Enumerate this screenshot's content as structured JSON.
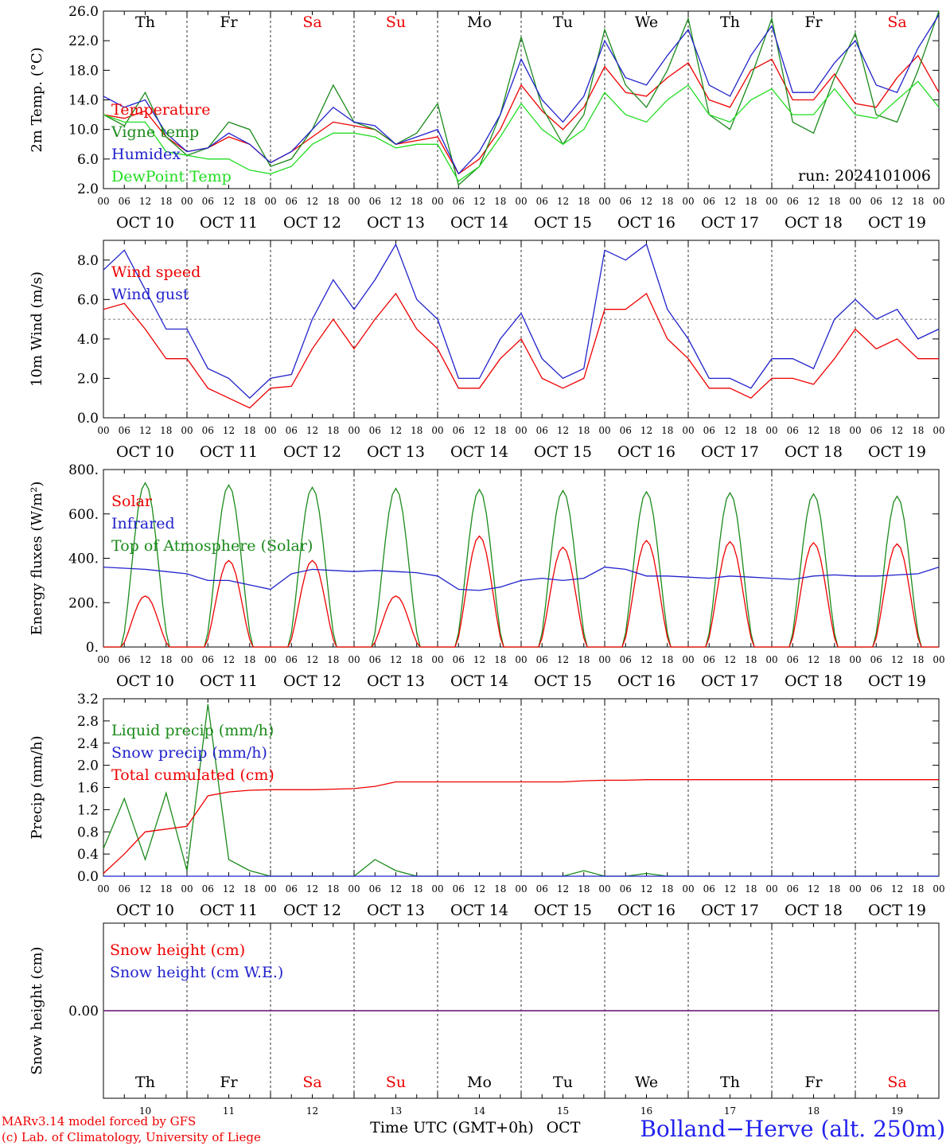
{
  "chart_data": [
    {
      "type": "line",
      "ylabel": "2m Temp. (°C)",
      "ylim": [
        2.0,
        26.0
      ],
      "yticks": [
        "2.0",
        "6.0",
        "10.0",
        "14.0",
        "18.0",
        "22.0",
        "26.0"
      ],
      "grid": "vertical dashed at day boundaries",
      "run_label": "run: 2024101006",
      "x_start": "2024-10-10T00",
      "x_step_hours": 6,
      "series": [
        {
          "name": "Temperature",
          "color": "#ee0000",
          "values": [
            12,
            11.5,
            12.5,
            9,
            7,
            7.5,
            9,
            8,
            5.5,
            7,
            9,
            11,
            10.5,
            10,
            8,
            8.5,
            9,
            4,
            6,
            10,
            16,
            12.5,
            10,
            13,
            18.5,
            15,
            14.5,
            17,
            19,
            14,
            13,
            18,
            19.5,
            14,
            14,
            17.5,
            13.5,
            13,
            17,
            20,
            15
          ]
        },
        {
          "name": "Vigne temp",
          "color": "#1a8a1a",
          "values": [
            12,
            10.5,
            15,
            9,
            6.5,
            7.5,
            11,
            10,
            5,
            6,
            10,
            16,
            11,
            10,
            8,
            9.5,
            13.5,
            2.5,
            5,
            12,
            22.5,
            13,
            8,
            12,
            23.5,
            16,
            13,
            18,
            25,
            12,
            10,
            17,
            25,
            11,
            9.5,
            17,
            23,
            12,
            11,
            18,
            26
          ]
        },
        {
          "name": "Humidex",
          "color": "#2222cc",
          "values": [
            14.5,
            13,
            14,
            9.5,
            7,
            7.5,
            9.5,
            8,
            5.5,
            7,
            10,
            13,
            11,
            10.5,
            8,
            9,
            10,
            4,
            7,
            12,
            19.5,
            14,
            11,
            14.5,
            22,
            17,
            16,
            20,
            23.5,
            16,
            14.5,
            20,
            24,
            15,
            15,
            19,
            22,
            16,
            15,
            21,
            25.5
          ]
        },
        {
          "name": "DewPoint Temp",
          "color": "#22dd22",
          "values": [
            12,
            11,
            11,
            7,
            6.5,
            6,
            6,
            4.5,
            4,
            5,
            8,
            9.5,
            9.5,
            9,
            7.5,
            8,
            8,
            3,
            5,
            9,
            13.5,
            10,
            8,
            10,
            15,
            12,
            11,
            14,
            16,
            12,
            11,
            14,
            15.5,
            12,
            12,
            15.5,
            12,
            11.5,
            14,
            16.5,
            13
          ]
        }
      ]
    },
    {
      "type": "line",
      "ylabel": "10m Wind (m/s)",
      "ylim": [
        0.0,
        9.0
      ],
      "yticks": [
        "0.0",
        "2.0",
        "4.0",
        "6.0",
        "8.0"
      ],
      "reference_line": 5.0,
      "series": [
        {
          "name": "Wind speed",
          "color": "#ee0000",
          "values": [
            5.5,
            5.8,
            4.5,
            3,
            3,
            1.5,
            1,
            0.5,
            1.5,
            1.6,
            3.5,
            5,
            3.5,
            5,
            6.3,
            4.5,
            3.5,
            1.5,
            1.5,
            3,
            4,
            2,
            1.5,
            2,
            5.5,
            5.5,
            6.3,
            4,
            3,
            1.5,
            1.5,
            1,
            2,
            2,
            1.7,
            3,
            4.5,
            3.5,
            4,
            3,
            3
          ]
        },
        {
          "name": "Wind gust",
          "color": "#2222cc",
          "values": [
            7.5,
            8.5,
            6.5,
            4.5,
            4.5,
            2.5,
            2,
            1,
            2,
            2.2,
            5,
            7,
            5.5,
            7,
            8.8,
            6,
            5,
            2,
            2,
            4,
            5.3,
            3,
            2,
            2.5,
            8.5,
            8,
            8.8,
            5.5,
            4,
            2,
            2,
            1.5,
            3,
            3,
            2.5,
            5,
            6,
            5,
            5.5,
            4,
            4.5
          ]
        }
      ]
    },
    {
      "type": "line",
      "ylabel": "Energy fluxes (W/m²)",
      "ylim": [
        0,
        800
      ],
      "yticks": [
        "0.",
        "200.",
        "400.",
        "600.",
        "800."
      ],
      "series": [
        {
          "name": "Solar",
          "color": "#ee0000",
          "peaks": [
            230,
            390,
            390,
            230,
            500,
            450,
            480,
            475,
            470,
            465
          ]
        },
        {
          "name": "Infrared",
          "color": "#2222cc",
          "values": [
            360,
            355,
            350,
            340,
            330,
            300,
            300,
            280,
            260,
            330,
            350,
            345,
            340,
            345,
            340,
            335,
            320,
            260,
            255,
            270,
            300,
            310,
            300,
            310,
            360,
            350,
            320,
            320,
            315,
            310,
            320,
            315,
            310,
            305,
            320,
            325,
            320,
            320,
            325,
            330,
            360
          ]
        },
        {
          "name": "Top of Atmosphere (Solar)",
          "color": "#1a8a1a",
          "peaks": [
            740,
            730,
            720,
            715,
            710,
            705,
            700,
            695,
            690,
            680
          ]
        }
      ]
    },
    {
      "type": "line",
      "ylabel": "Precip (mm/h)",
      "ylim": [
        0.0,
        3.2
      ],
      "yticks": [
        "0.0",
        "0.4",
        "0.8",
        "1.2",
        "1.6",
        "2.0",
        "2.4",
        "2.8",
        "3.2"
      ],
      "series": [
        {
          "name": "Liquid precip (mm/h)",
          "color": "#1a8a1a",
          "values": [
            0.5,
            1.4,
            0.3,
            1.5,
            0.1,
            3.1,
            0.3,
            0.1,
            0,
            0,
            0,
            0,
            0,
            0.3,
            0.1,
            0,
            0,
            0,
            0,
            0,
            0,
            0,
            0,
            0.1,
            0,
            0,
            0.05,
            0,
            0,
            0,
            0,
            0,
            0,
            0,
            0,
            0,
            0,
            0,
            0,
            0,
            0
          ]
        },
        {
          "name": "Snow precip (mm/h)",
          "color": "#2222cc",
          "values": [
            0,
            0,
            0,
            0,
            0,
            0,
            0,
            0,
            0,
            0,
            0,
            0,
            0,
            0,
            0,
            0,
            0,
            0,
            0,
            0,
            0,
            0,
            0,
            0,
            0,
            0,
            0,
            0,
            0,
            0,
            0,
            0,
            0,
            0,
            0,
            0,
            0,
            0,
            0,
            0,
            0
          ]
        },
        {
          "name": "Total cumulated (cm)",
          "color": "#ee0000",
          "values": [
            0.05,
            0.4,
            0.8,
            0.85,
            0.9,
            1.45,
            1.52,
            1.55,
            1.56,
            1.56,
            1.56,
            1.57,
            1.58,
            1.62,
            1.7,
            1.7,
            1.7,
            1.7,
            1.7,
            1.7,
            1.7,
            1.7,
            1.7,
            1.72,
            1.73,
            1.73,
            1.74,
            1.74,
            1.74,
            1.74,
            1.74,
            1.74,
            1.74,
            1.74,
            1.74,
            1.74,
            1.74,
            1.74,
            1.74,
            1.74,
            1.74
          ]
        }
      ]
    },
    {
      "type": "line",
      "ylabel": "Snow height (cm)",
      "yticks": [
        "0.00"
      ],
      "series": [
        {
          "name": "Snow height (cm)",
          "color": "#ee0000",
          "values": [
            0,
            0
          ]
        },
        {
          "name": "Snow height (cm W.E.)",
          "color": "#2222cc",
          "values": [
            0,
            0
          ]
        }
      ]
    }
  ],
  "days": [
    "Th",
    "Fr",
    "Sa",
    "Su",
    "Mo",
    "Tu",
    "We",
    "Th",
    "Fr",
    "Sa"
  ],
  "weekend_flags": [
    false,
    false,
    true,
    true,
    false,
    false,
    false,
    false,
    false,
    true
  ],
  "dates": [
    "OCT 10",
    "OCT 11",
    "OCT 12",
    "OCT 13",
    "OCT 14",
    "OCT 15",
    "OCT 16",
    "OCT 17",
    "OCT 18",
    "OCT 19"
  ],
  "day_numbers": [
    "10",
    "11",
    "12",
    "13",
    "14",
    "15",
    "16",
    "17",
    "18",
    "19"
  ],
  "hour_ticks": [
    "00",
    "06",
    "12",
    "18"
  ],
  "hour_end": "00",
  "footer": {
    "model": "MARv3.14 model forced by GFS",
    "credit": "(c) Lab. of Climatology, University of Liege",
    "time_label": "Time UTC (GMT+0h)",
    "month": "OCT",
    "station": "Bolland−Herve (alt. 250m)"
  },
  "colors": {
    "weekend": "#ee0000",
    "station": "#2222ee"
  }
}
